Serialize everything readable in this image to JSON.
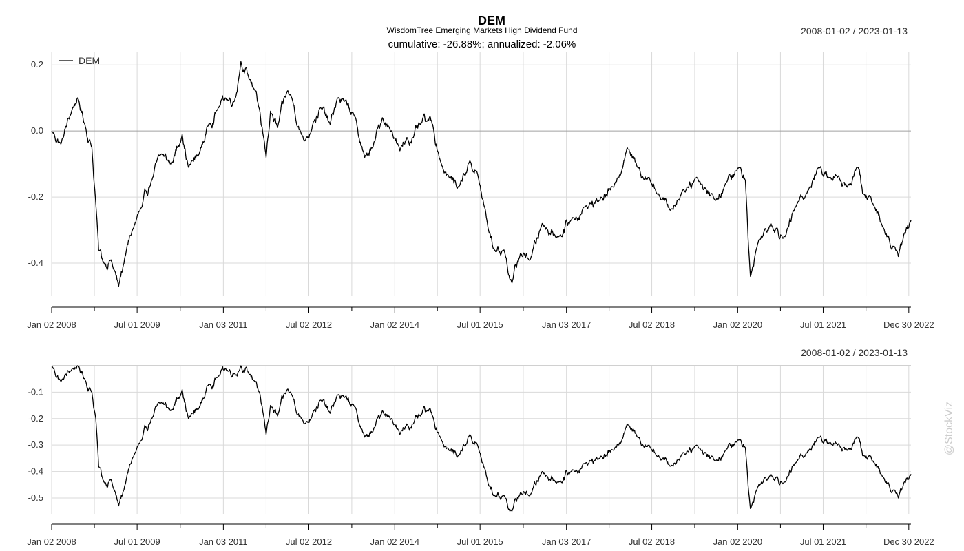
{
  "header": {
    "title": "DEM",
    "subtitle": "WisdomTree Emerging Markets High Dividend Fund",
    "stats": "cumulative: -26.88%; annualized: -2.06%"
  },
  "watermark": "@StockViz",
  "colors": {
    "line": "#000000",
    "grid": "#d9d9d9",
    "zero": "#a0a0a0",
    "text": "#333333"
  },
  "chart_data": [
    {
      "type": "line",
      "panel": "cumulative-returns",
      "date_range_label": "2008-01-02 / 2023-01-13",
      "xlim": [
        "2008-01-02",
        "2023-01-13"
      ],
      "ylim": [
        -0.5,
        0.24
      ],
      "yticks": [
        0.2,
        0.0,
        -0.2,
        -0.4
      ],
      "ytick_labels": [
        "0.2",
        "0.0",
        "-0.2",
        "-0.4"
      ],
      "xticks": [
        "2008-01-02",
        "2009-07-01",
        "2011-01-03",
        "2012-07-02",
        "2014-01-02",
        "2015-07-01",
        "2017-01-03",
        "2018-07-02",
        "2020-01-02",
        "2021-07-01",
        "2022-12-30"
      ],
      "xtick_labels": [
        "Jan 02 2008",
        "Jul 01 2009",
        "Jan 03 2011",
        "Jul 02 2012",
        "Jan 02 2014",
        "Jul 01 2015",
        "Jan 03 2017",
        "Jul 02 2018",
        "Jan 02 2020",
        "Jul 01 2021",
        "Dec 30 2022"
      ],
      "grid": true,
      "legend": {
        "placement": "top-left"
      },
      "series": [
        {
          "name": "DEM",
          "points": [
            [
              "2008-01-02",
              0.0
            ],
            [
              "2008-03-01",
              -0.04
            ],
            [
              "2008-05-15",
              0.07
            ],
            [
              "2008-06-15",
              0.1
            ],
            [
              "2008-08-01",
              0.02
            ],
            [
              "2008-09-15",
              -0.05
            ],
            [
              "2008-10-10",
              -0.22
            ],
            [
              "2008-10-28",
              -0.36
            ],
            [
              "2008-12-01",
              -0.4
            ],
            [
              "2009-01-15",
              -0.39
            ],
            [
              "2009-03-05",
              -0.47
            ],
            [
              "2009-04-15",
              -0.38
            ],
            [
              "2009-06-01",
              -0.3
            ],
            [
              "2009-08-01",
              -0.23
            ],
            [
              "2009-10-01",
              -0.15
            ],
            [
              "2009-12-01",
              -0.07
            ],
            [
              "2010-02-05",
              -0.1
            ],
            [
              "2010-04-15",
              -0.01
            ],
            [
              "2010-05-25",
              -0.11
            ],
            [
              "2010-08-01",
              -0.07
            ],
            [
              "2010-10-01",
              0.02
            ],
            [
              "2010-12-01",
              0.07
            ],
            [
              "2011-01-15",
              0.1
            ],
            [
              "2011-03-15",
              0.09
            ],
            [
              "2011-04-25",
              0.21
            ],
            [
              "2011-06-15",
              0.16
            ],
            [
              "2011-08-01",
              0.12
            ],
            [
              "2011-09-01",
              0.02
            ],
            [
              "2011-10-03",
              -0.08
            ],
            [
              "2011-10-31",
              0.06
            ],
            [
              "2011-12-15",
              0.01
            ],
            [
              "2012-02-15",
              0.12
            ],
            [
              "2012-03-15",
              0.1
            ],
            [
              "2012-05-15",
              -0.01
            ],
            [
              "2012-06-05",
              -0.03
            ],
            [
              "2012-08-01",
              0.03
            ],
            [
              "2012-09-15",
              0.07
            ],
            [
              "2012-11-15",
              0.02
            ],
            [
              "2013-01-02",
              0.1
            ],
            [
              "2013-02-15",
              0.09
            ],
            [
              "2013-04-15",
              0.05
            ],
            [
              "2013-06-24",
              -0.08
            ],
            [
              "2013-08-15",
              -0.05
            ],
            [
              "2013-10-15",
              0.04
            ],
            [
              "2013-12-15",
              0.0
            ],
            [
              "2014-02-04",
              -0.06
            ],
            [
              "2014-03-20",
              -0.02
            ],
            [
              "2014-05-01",
              -0.02
            ],
            [
              "2014-06-15",
              0.02
            ],
            [
              "2014-07-30",
              0.03
            ],
            [
              "2014-09-01",
              0.02
            ],
            [
              "2014-10-20",
              -0.09
            ],
            [
              "2014-12-15",
              -0.14
            ],
            [
              "2015-02-15",
              -0.17
            ],
            [
              "2015-04-27",
              -0.09
            ],
            [
              "2015-06-15",
              -0.13
            ],
            [
              "2015-08-24",
              -0.3
            ],
            [
              "2015-10-01",
              -0.36
            ],
            [
              "2015-12-01",
              -0.36
            ],
            [
              "2016-01-21",
              -0.46
            ],
            [
              "2016-03-15",
              -0.37
            ],
            [
              "2016-05-15",
              -0.39
            ],
            [
              "2016-08-01",
              -0.28
            ],
            [
              "2016-11-15",
              -0.32
            ],
            [
              "2017-02-01",
              -0.27
            ],
            [
              "2017-05-01",
              -0.23
            ],
            [
              "2017-08-01",
              -0.21
            ],
            [
              "2017-11-01",
              -0.17
            ],
            [
              "2018-01-26",
              -0.05
            ],
            [
              "2018-04-01",
              -0.11
            ],
            [
              "2018-06-15",
              -0.14
            ],
            [
              "2018-08-15",
              -0.19
            ],
            [
              "2018-10-29",
              -0.24
            ],
            [
              "2019-01-15",
              -0.18
            ],
            [
              "2019-04-15",
              -0.14
            ],
            [
              "2019-08-15",
              -0.21
            ],
            [
              "2019-10-15",
              -0.16
            ],
            [
              "2020-01-17",
              -0.11
            ],
            [
              "2020-02-20",
              -0.15
            ],
            [
              "2020-03-23",
              -0.44
            ],
            [
              "2020-05-15",
              -0.33
            ],
            [
              "2020-08-01",
              -0.28
            ],
            [
              "2020-10-30",
              -0.32
            ],
            [
              "2021-01-15",
              -0.22
            ],
            [
              "2021-03-15",
              -0.19
            ],
            [
              "2021-06-01",
              -0.11
            ],
            [
              "2021-08-15",
              -0.14
            ],
            [
              "2021-10-01",
              -0.14
            ],
            [
              "2021-12-01",
              -0.17
            ],
            [
              "2022-02-10",
              -0.11
            ],
            [
              "2022-03-10",
              -0.19
            ],
            [
              "2022-05-15",
              -0.22
            ],
            [
              "2022-07-15",
              -0.29
            ],
            [
              "2022-09-30",
              -0.35
            ],
            [
              "2022-10-24",
              -0.38
            ],
            [
              "2022-12-01",
              -0.31
            ],
            [
              "2023-01-13",
              -0.27
            ]
          ]
        }
      ]
    },
    {
      "type": "line",
      "panel": "drawdown",
      "date_range_label": "2008-01-02 / 2023-01-13",
      "xlim": [
        "2008-01-02",
        "2023-01-13"
      ],
      "ylim": [
        -0.56,
        0.0
      ],
      "yticks": [
        -0.1,
        -0.2,
        -0.3,
        -0.4,
        -0.5
      ],
      "ytick_labels": [
        "-0.1",
        "-0.2",
        "-0.3",
        "-0.4",
        "-0.5"
      ],
      "xticks": [
        "2008-01-02",
        "2009-07-01",
        "2011-01-03",
        "2012-07-02",
        "2014-01-02",
        "2015-07-01",
        "2017-01-03",
        "2018-07-02",
        "2020-01-02",
        "2021-07-01",
        "2022-12-30"
      ],
      "xtick_labels": [
        "Jan 02 2008",
        "Jul 01 2009",
        "Jan 03 2011",
        "Jul 02 2012",
        "Jan 02 2014",
        "Jul 01 2015",
        "Jan 03 2017",
        "Jul 02 2018",
        "Jan 02 2020",
        "Jul 01 2021",
        "Dec 30 2022"
      ],
      "grid": true,
      "series": [
        {
          "name": "",
          "points": [
            [
              "2008-01-02",
              0.0
            ],
            [
              "2008-03-01",
              -0.06
            ],
            [
              "2008-05-15",
              -0.01
            ],
            [
              "2008-06-15",
              0.0
            ],
            [
              "2008-08-01",
              -0.05
            ],
            [
              "2008-09-15",
              -0.1
            ],
            [
              "2008-10-10",
              -0.2
            ],
            [
              "2008-10-28",
              -0.38
            ],
            [
              "2008-12-01",
              -0.44
            ],
            [
              "2009-01-15",
              -0.43
            ],
            [
              "2009-03-05",
              -0.53
            ],
            [
              "2009-04-15",
              -0.45
            ],
            [
              "2009-06-01",
              -0.35
            ],
            [
              "2009-08-01",
              -0.28
            ],
            [
              "2009-10-01",
              -0.2
            ],
            [
              "2009-12-01",
              -0.14
            ],
            [
              "2010-02-05",
              -0.17
            ],
            [
              "2010-04-15",
              -0.09
            ],
            [
              "2010-05-25",
              -0.2
            ],
            [
              "2010-08-01",
              -0.16
            ],
            [
              "2010-10-01",
              -0.07
            ],
            [
              "2010-12-01",
              -0.04
            ],
            [
              "2011-01-15",
              -0.01
            ],
            [
              "2011-03-15",
              -0.03
            ],
            [
              "2011-04-25",
              0.0
            ],
            [
              "2011-06-15",
              -0.03
            ],
            [
              "2011-08-01",
              -0.06
            ],
            [
              "2011-09-01",
              -0.14
            ],
            [
              "2011-10-03",
              -0.26
            ],
            [
              "2011-10-31",
              -0.15
            ],
            [
              "2011-12-15",
              -0.19
            ],
            [
              "2012-02-15",
              -0.09
            ],
            [
              "2012-03-15",
              -0.11
            ],
            [
              "2012-05-15",
              -0.2
            ],
            [
              "2012-06-05",
              -0.22
            ],
            [
              "2012-08-01",
              -0.17
            ],
            [
              "2012-09-15",
              -0.13
            ],
            [
              "2012-11-15",
              -0.18
            ],
            [
              "2013-01-02",
              -0.11
            ],
            [
              "2013-02-15",
              -0.12
            ],
            [
              "2013-04-15",
              -0.15
            ],
            [
              "2013-06-24",
              -0.27
            ],
            [
              "2013-08-15",
              -0.25
            ],
            [
              "2013-10-15",
              -0.17
            ],
            [
              "2013-12-15",
              -0.2
            ],
            [
              "2014-02-04",
              -0.26
            ],
            [
              "2014-03-20",
              -0.22
            ],
            [
              "2014-05-01",
              -0.22
            ],
            [
              "2014-06-15",
              -0.19
            ],
            [
              "2014-07-30",
              -0.17
            ],
            [
              "2014-09-01",
              -0.19
            ],
            [
              "2014-10-20",
              -0.27
            ],
            [
              "2014-12-15",
              -0.32
            ],
            [
              "2015-02-15",
              -0.34
            ],
            [
              "2015-04-27",
              -0.26
            ],
            [
              "2015-06-15",
              -0.3
            ],
            [
              "2015-08-24",
              -0.45
            ],
            [
              "2015-10-01",
              -0.49
            ],
            [
              "2015-12-01",
              -0.49
            ],
            [
              "2016-01-21",
              -0.55
            ],
            [
              "2016-03-15",
              -0.48
            ],
            [
              "2016-05-15",
              -0.49
            ],
            [
              "2016-08-01",
              -0.4
            ],
            [
              "2016-11-15",
              -0.44
            ],
            [
              "2017-02-01",
              -0.4
            ],
            [
              "2017-05-01",
              -0.37
            ],
            [
              "2017-08-01",
              -0.35
            ],
            [
              "2017-11-01",
              -0.32
            ],
            [
              "2018-01-26",
              -0.22
            ],
            [
              "2018-04-01",
              -0.27
            ],
            [
              "2018-06-15",
              -0.3
            ],
            [
              "2018-08-15",
              -0.34
            ],
            [
              "2018-10-29",
              -0.38
            ],
            [
              "2019-01-15",
              -0.33
            ],
            [
              "2019-04-15",
              -0.3
            ],
            [
              "2019-08-15",
              -0.36
            ],
            [
              "2019-10-15",
              -0.32
            ],
            [
              "2020-01-17",
              -0.28
            ],
            [
              "2020-02-20",
              -0.31
            ],
            [
              "2020-03-23",
              -0.54
            ],
            [
              "2020-05-15",
              -0.45
            ],
            [
              "2020-08-01",
              -0.41
            ],
            [
              "2020-10-30",
              -0.44
            ],
            [
              "2021-01-15",
              -0.36
            ],
            [
              "2021-03-15",
              -0.33
            ],
            [
              "2021-06-01",
              -0.27
            ],
            [
              "2021-08-15",
              -0.29
            ],
            [
              "2021-10-01",
              -0.3
            ],
            [
              "2021-12-01",
              -0.32
            ],
            [
              "2022-02-10",
              -0.27
            ],
            [
              "2022-03-10",
              -0.34
            ],
            [
              "2022-05-15",
              -0.36
            ],
            [
              "2022-07-15",
              -0.42
            ],
            [
              "2022-09-30",
              -0.47
            ],
            [
              "2022-10-24",
              -0.5
            ],
            [
              "2022-12-01",
              -0.44
            ],
            [
              "2023-01-13",
              -0.41
            ]
          ]
        }
      ]
    }
  ]
}
